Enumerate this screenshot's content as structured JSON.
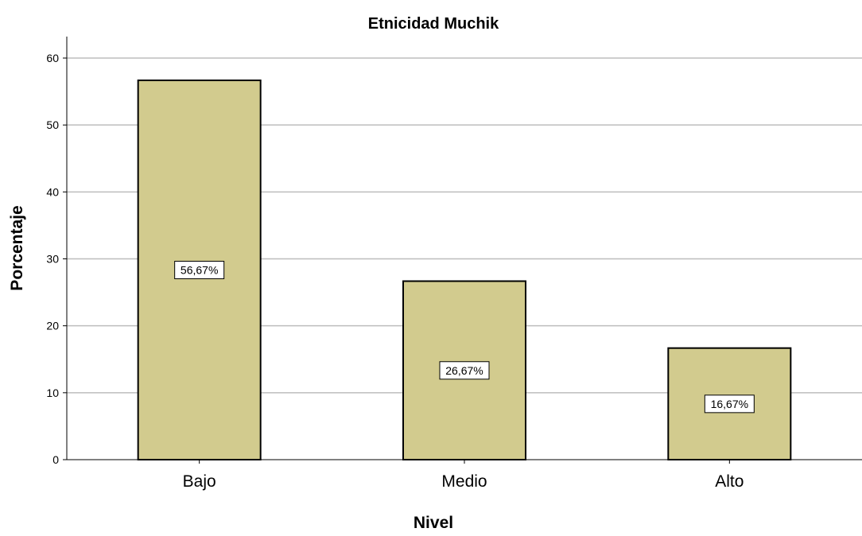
{
  "chart_data": {
    "type": "bar",
    "title": "Etnicidad Muchik",
    "xlabel": "Nivel",
    "ylabel": "Porcentaje",
    "categories": [
      "Bajo",
      "Medio",
      "Alto"
    ],
    "values": [
      56.67,
      26.67,
      16.67
    ],
    "data_labels": [
      "56,67%",
      "26,67%",
      "16,67%"
    ],
    "ylim": [
      0,
      63
    ],
    "yticks": [
      0,
      10,
      20,
      30,
      40,
      50,
      60
    ],
    "grid": true,
    "legend": "none",
    "colors": {
      "bar_fill": "#d2cb8e",
      "bar_stroke": "#000000",
      "grid": "#bdbdbd",
      "axis": "#000000",
      "label_box": "#ffffff"
    }
  }
}
